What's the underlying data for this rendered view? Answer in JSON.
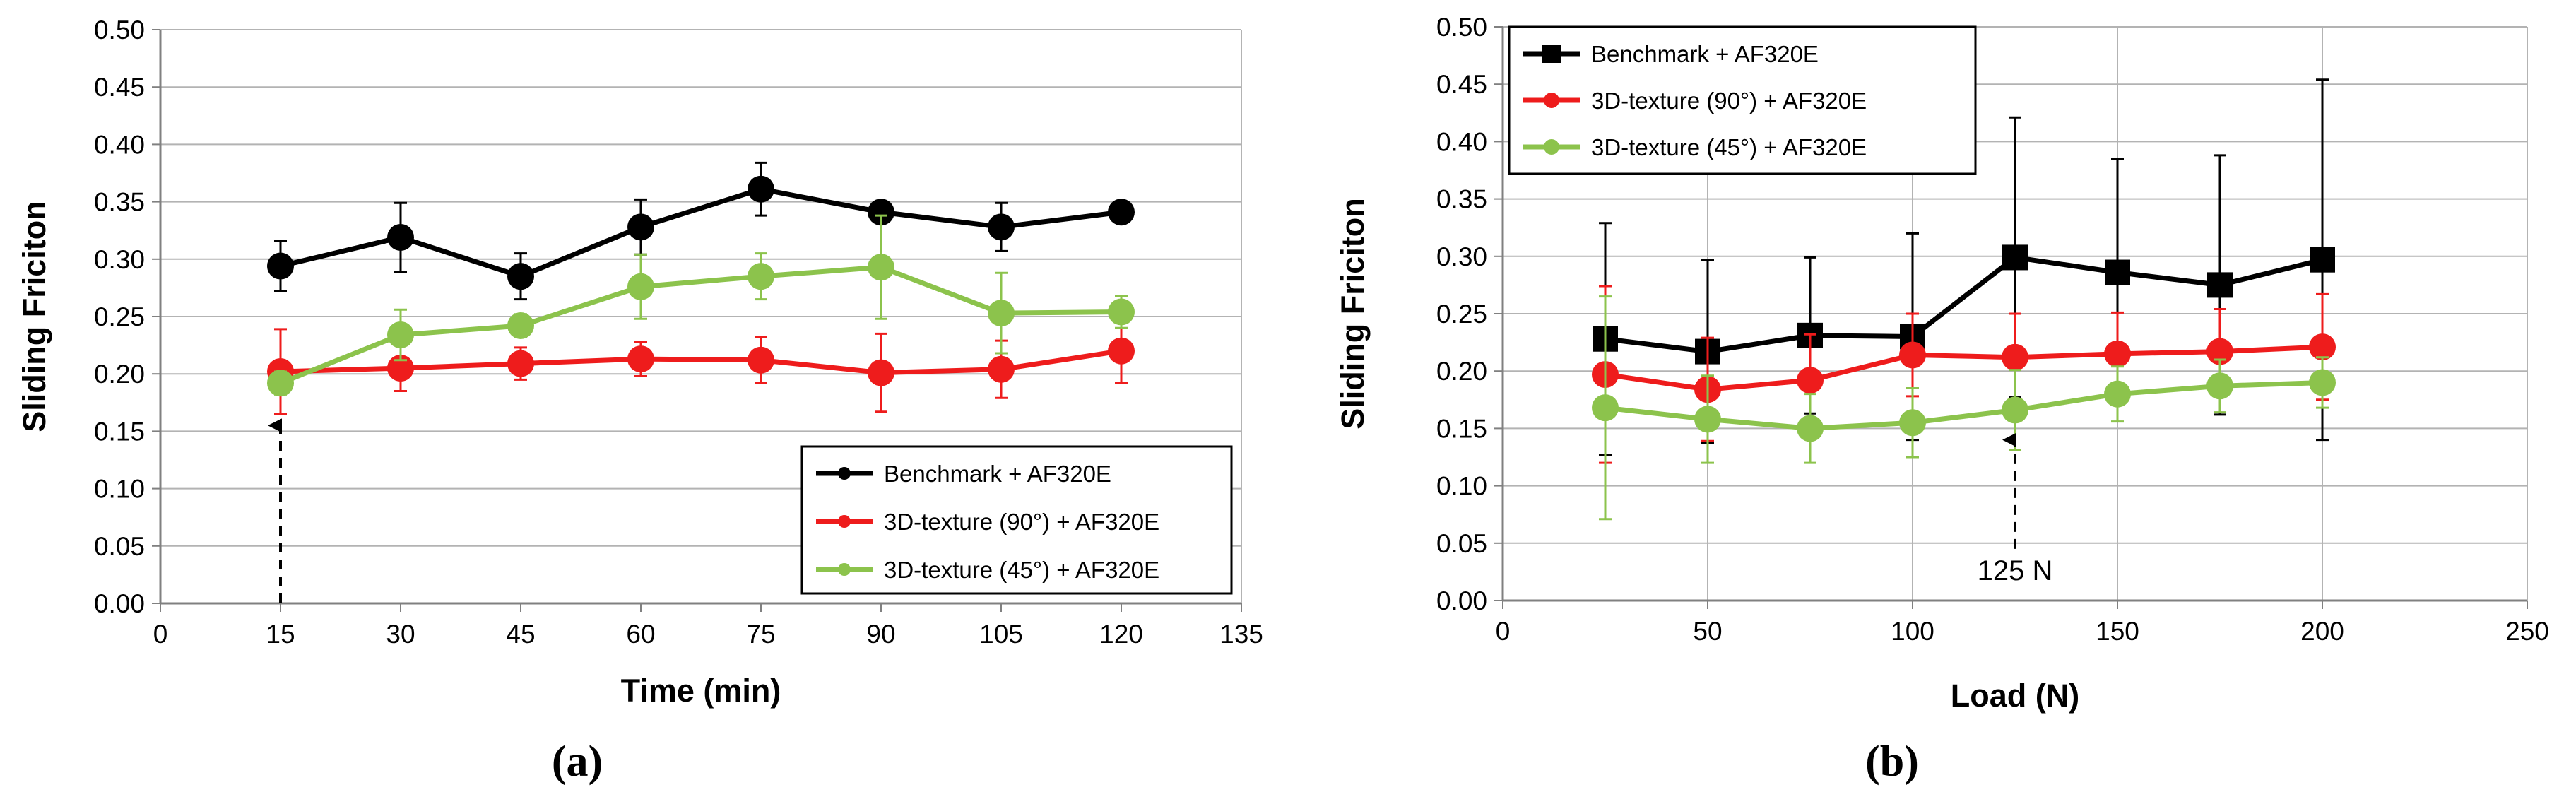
{
  "chart_data": [
    {
      "type": "line",
      "panel_label": "(a)",
      "xlabel": "Time (min)",
      "ylabel": "Sliding Friciton",
      "xlim": [
        0,
        135
      ],
      "ylim": [
        0,
        0.5
      ],
      "x_ticks": [
        "0",
        "15",
        "30",
        "45",
        "60",
        "75",
        "90",
        "105",
        "120",
        "135"
      ],
      "y_ticks": [
        "0.00",
        "0.05",
        "0.10",
        "0.15",
        "0.20",
        "0.25",
        "0.30",
        "0.35",
        "0.40",
        "0.45",
        "0.50"
      ],
      "grid": true,
      "legend_position": "bottom-right",
      "annotation": {
        "type": "dashed-arrow",
        "x": 15,
        "y_from": 0.0,
        "y_to": 0.155,
        "text": ""
      },
      "series": [
        {
          "name": "Benchmark + AF320E",
          "color": "#000000",
          "marker": "circle",
          "x": [
            15,
            30,
            45,
            60,
            75,
            90,
            105,
            120
          ],
          "values": [
            0.294,
            0.319,
            0.285,
            0.328,
            0.361,
            0.341,
            0.328,
            0.341
          ],
          "errors": [
            0.022,
            0.03,
            0.02,
            0.024,
            0.023,
            0.0,
            0.021,
            0.0
          ]
        },
        {
          "name": "3D-texture (90°) + AF320E",
          "color": "#ee1c1c",
          "marker": "circle",
          "x": [
            15,
            30,
            45,
            60,
            75,
            90,
            105,
            120
          ],
          "values": [
            0.202,
            0.205,
            0.209,
            0.213,
            0.212,
            0.201,
            0.204,
            0.22
          ],
          "errors": [
            0.037,
            0.02,
            0.014,
            0.015,
            0.02,
            0.034,
            0.025,
            0.028
          ]
        },
        {
          "name": "3D-texture (45°) + AF320E",
          "color": "#8cc34c",
          "marker": "circle",
          "x": [
            15,
            30,
            45,
            60,
            75,
            90,
            105,
            120
          ],
          "values": [
            0.192,
            0.234,
            0.242,
            0.276,
            0.285,
            0.293,
            0.253,
            0.254
          ],
          "errors": [
            0.01,
            0.022,
            0.01,
            0.028,
            0.02,
            0.045,
            0.035,
            0.014
          ]
        }
      ]
    },
    {
      "type": "line",
      "panel_label": "(b)",
      "xlabel": "Load (N)",
      "ylabel": "Sliding Friciton",
      "xlim": [
        0,
        250
      ],
      "ylim": [
        0,
        0.5
      ],
      "x_ticks": [
        "0",
        "50",
        "100",
        "150",
        "200",
        "250"
      ],
      "y_ticks": [
        "0.00",
        "0.05",
        "0.10",
        "0.15",
        "0.20",
        "0.25",
        "0.30",
        "0.35",
        "0.40",
        "0.45",
        "0.50"
      ],
      "grid": true,
      "legend_position": "top-left",
      "annotation": {
        "type": "dashed-arrow",
        "x": 125,
        "y_from": 0.045,
        "y_to": 0.14,
        "text": "125 N"
      },
      "series": [
        {
          "name": "Benchmark + AF320E",
          "color": "#000000",
          "marker": "square",
          "x": [
            25,
            50,
            75,
            100,
            125,
            150,
            175,
            200
          ],
          "values": [
            0.228,
            0.217,
            0.231,
            0.23,
            0.299,
            0.286,
            0.275,
            0.297
          ],
          "errors": [
            0.101,
            0.08,
            0.068,
            0.09,
            0.122,
            0.099,
            0.113,
            0.157
          ]
        },
        {
          "name": "3D-texture (90°) + AF320E",
          "color": "#ee1c1c",
          "marker": "circle",
          "x": [
            25,
            50,
            75,
            100,
            125,
            150,
            175,
            200
          ],
          "values": [
            0.197,
            0.184,
            0.192,
            0.214,
            0.212,
            0.215,
            0.217,
            0.221
          ],
          "errors": [
            0.077,
            0.045,
            0.04,
            0.036,
            0.038,
            0.036,
            0.037,
            0.046
          ]
        },
        {
          "name": "3D-texture (45°) + AF320E",
          "color": "#8cc34c",
          "marker": "circle",
          "x": [
            25,
            50,
            75,
            100,
            125,
            150,
            175,
            200
          ],
          "values": [
            0.168,
            0.158,
            0.15,
            0.155,
            0.166,
            0.18,
            0.187,
            0.19
          ],
          "errors": [
            0.097,
            0.038,
            0.03,
            0.03,
            0.035,
            0.024,
            0.023,
            0.022
          ]
        }
      ]
    }
  ]
}
